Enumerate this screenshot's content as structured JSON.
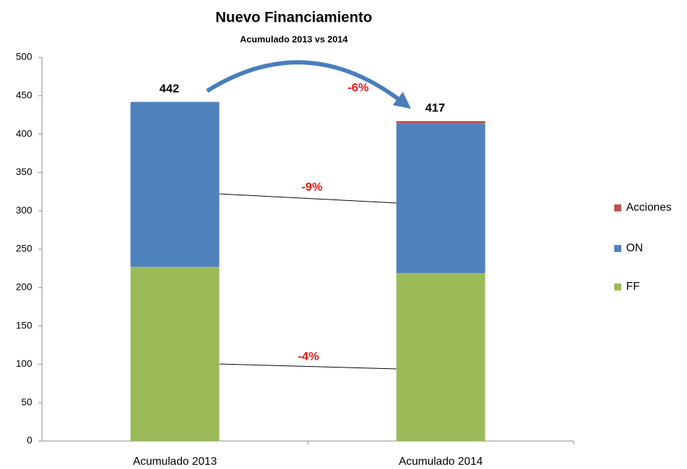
{
  "chart_data": {
    "type": "stacked_bar",
    "title": "Nuevo Financiamiento",
    "subtitle": "Acumulado 2013 vs 2014",
    "categories": [
      "Acumulado 2013",
      "Acumulado 2014"
    ],
    "series": [
      {
        "name": "FF",
        "color": "#9bbb59",
        "values": [
          227,
          219
        ]
      },
      {
        "name": "ON",
        "color": "#4f81bd",
        "values": [
          215,
          195
        ]
      },
      {
        "name": "Acciones",
        "color": "#c0504d",
        "values": [
          0,
          3
        ]
      }
    ],
    "totals": [
      442,
      417
    ],
    "annotations": [
      "-6%",
      "-9%",
      "-4%"
    ],
    "ylim": [
      0,
      500
    ],
    "yticks": [
      0,
      50,
      100,
      150,
      200,
      250,
      300,
      350,
      400,
      450,
      500
    ],
    "legend": "right"
  }
}
